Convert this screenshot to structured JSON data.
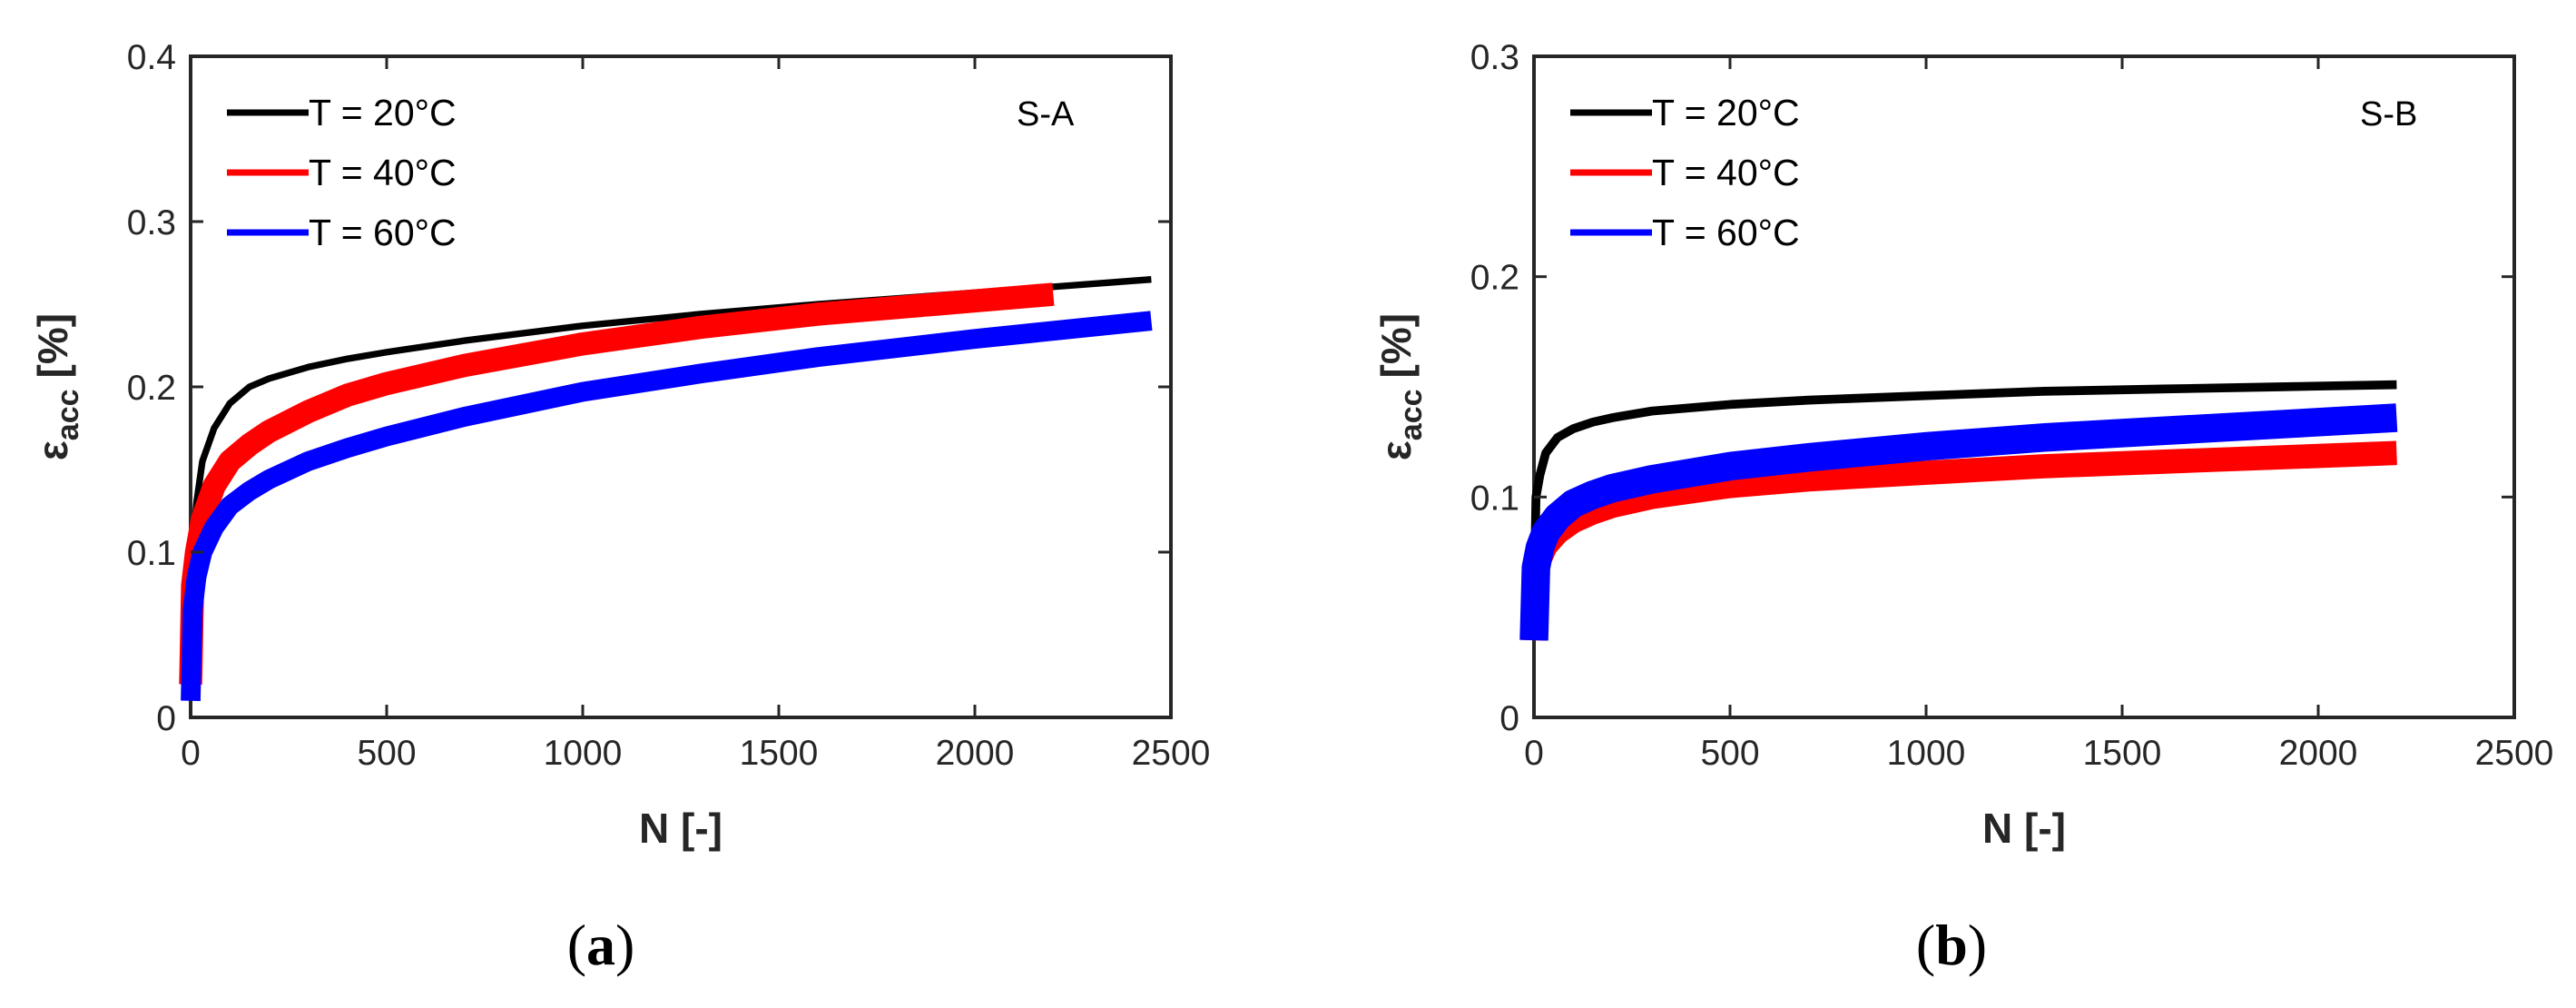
{
  "chart_data": [
    {
      "type": "line",
      "panel_label": "(a)",
      "panel_letter": "a",
      "annotation": "S-A",
      "xlabel": "N [-]",
      "ylabel_main": "ε",
      "ylabel_sub": "acc",
      "ylabel_unit": "[%]",
      "xlim": [
        0,
        2500
      ],
      "ylim": [
        0,
        0.4
      ],
      "xticks": [
        0,
        500,
        1000,
        1500,
        2000,
        2500
      ],
      "xtick_labels": [
        "0",
        "500",
        "1000",
        "1500",
        "2000",
        "2500"
      ],
      "yticks": [
        0,
        0.1,
        0.2,
        0.3,
        0.4
      ],
      "ytick_labels": [
        "0",
        "0.1",
        "0.2",
        "0.3",
        "0.4"
      ],
      "legend_position": "top-left",
      "series": [
        {
          "name": "T = 20°C",
          "color": "#000000",
          "band": 0.004,
          "x": [
            0,
            5,
            15,
            30,
            60,
            100,
            150,
            200,
            300,
            400,
            500,
            700,
            1000,
            1300,
            1600,
            2000,
            2450
          ],
          "y": [
            0.02,
            0.1,
            0.13,
            0.155,
            0.175,
            0.19,
            0.2,
            0.205,
            0.212,
            0.217,
            0.221,
            0.228,
            0.237,
            0.244,
            0.25,
            0.257,
            0.265
          ]
        },
        {
          "name": "T = 40°C",
          "color": "#ff0000",
          "band": 0.014,
          "x": [
            0,
            5,
            15,
            30,
            60,
            100,
            150,
            200,
            300,
            400,
            500,
            700,
            1000,
            1300,
            1600,
            1900,
            2200
          ],
          "y": [
            0.02,
            0.08,
            0.1,
            0.12,
            0.14,
            0.155,
            0.165,
            0.173,
            0.185,
            0.195,
            0.202,
            0.213,
            0.226,
            0.236,
            0.244,
            0.25,
            0.256
          ]
        },
        {
          "name": "T = 60°C",
          "color": "#0000ff",
          "band": 0.012,
          "x": [
            0,
            5,
            15,
            30,
            60,
            100,
            150,
            200,
            300,
            400,
            500,
            700,
            1000,
            1300,
            1600,
            2000,
            2450
          ],
          "y": [
            0.01,
            0.065,
            0.085,
            0.1,
            0.115,
            0.128,
            0.137,
            0.144,
            0.155,
            0.163,
            0.17,
            0.182,
            0.197,
            0.208,
            0.218,
            0.229,
            0.24
          ]
        }
      ]
    },
    {
      "type": "line",
      "panel_label": "(b)",
      "panel_letter": "b",
      "annotation": "S-B",
      "xlabel": "N [-]",
      "ylabel_main": "ε",
      "ylabel_sub": "acc",
      "ylabel_unit": "[%]",
      "xlim": [
        0,
        2500
      ],
      "ylim": [
        0,
        0.3
      ],
      "xticks": [
        0,
        500,
        1000,
        1500,
        2000,
        2500
      ],
      "xtick_labels": [
        "0",
        "500",
        "1000",
        "1500",
        "2000",
        "2500"
      ],
      "yticks": [
        0,
        0.1,
        0.2,
        0.3
      ],
      "ytick_labels": [
        "0",
        "0.1",
        "0.2",
        "0.3"
      ],
      "legend_position": "top-left",
      "series": [
        {
          "name": "T = 20°C",
          "color": "#000000",
          "band": 0.004,
          "x": [
            0,
            5,
            15,
            30,
            60,
            100,
            150,
            200,
            300,
            500,
            700,
            1000,
            1300,
            1600,
            1900,
            2200
          ],
          "y": [
            0.05,
            0.1,
            0.11,
            0.12,
            0.127,
            0.131,
            0.134,
            0.136,
            0.139,
            0.142,
            0.144,
            0.146,
            0.148,
            0.149,
            0.15,
            0.151
          ]
        },
        {
          "name": "T = 40°C",
          "color": "#ff0000",
          "band": 0.011,
          "x": [
            0,
            5,
            15,
            30,
            60,
            100,
            150,
            200,
            300,
            500,
            700,
            1000,
            1300,
            1600,
            1900,
            2200
          ],
          "y": [
            0.035,
            0.065,
            0.072,
            0.078,
            0.084,
            0.089,
            0.093,
            0.096,
            0.1,
            0.105,
            0.108,
            0.111,
            0.114,
            0.116,
            0.118,
            0.12
          ]
        },
        {
          "name": "T = 60°C",
          "color": "#0000ff",
          "band": 0.013,
          "x": [
            0,
            5,
            15,
            30,
            60,
            100,
            150,
            200,
            300,
            500,
            700,
            1000,
            1300,
            1600,
            1900,
            2200
          ],
          "y": [
            0.035,
            0.068,
            0.077,
            0.084,
            0.091,
            0.097,
            0.101,
            0.104,
            0.108,
            0.114,
            0.118,
            0.123,
            0.127,
            0.13,
            0.133,
            0.136
          ]
        }
      ]
    }
  ]
}
